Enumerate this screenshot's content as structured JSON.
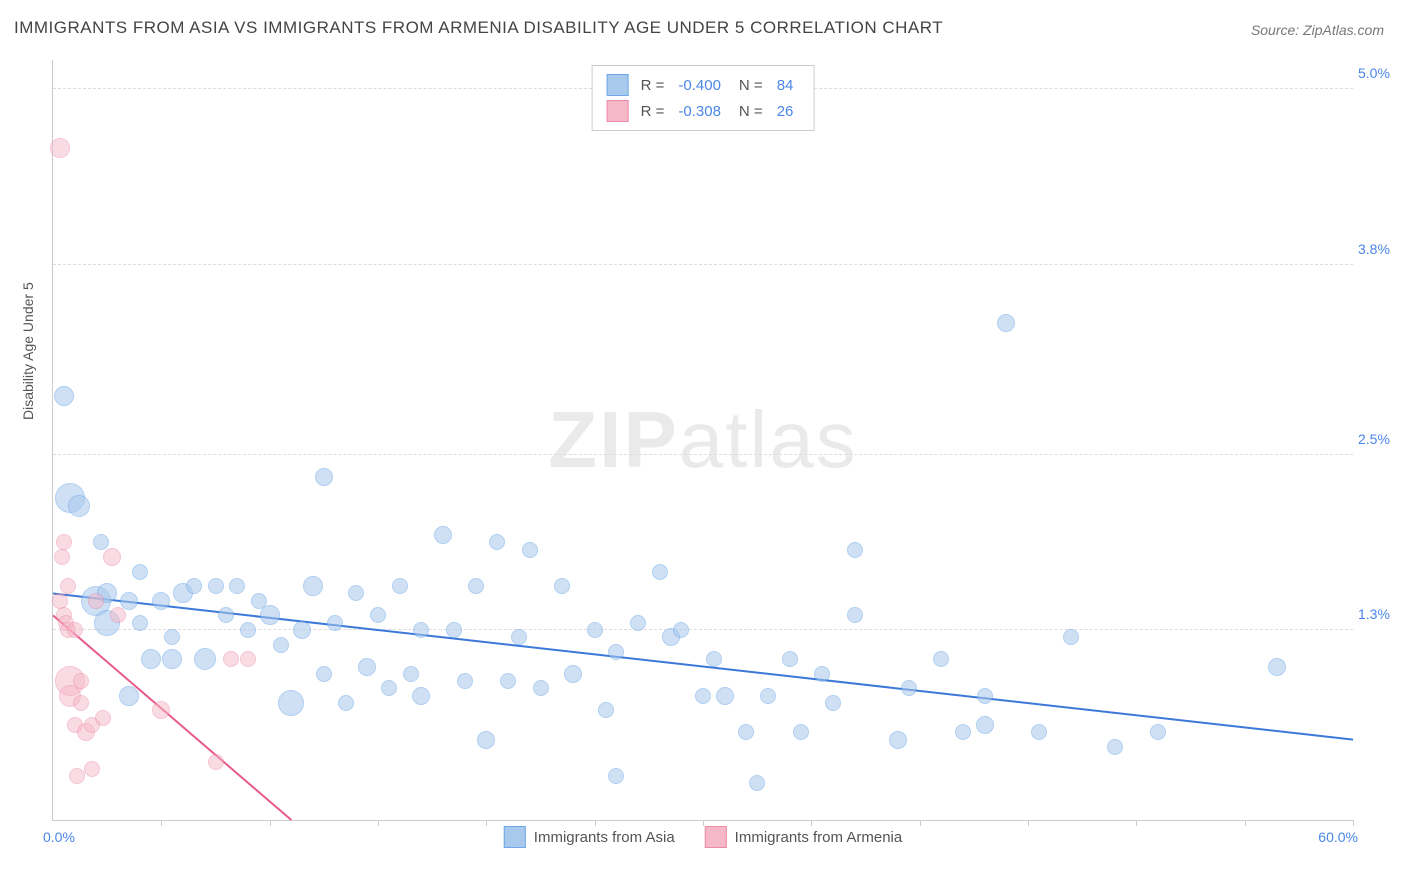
{
  "title": "IMMIGRANTS FROM ASIA VS IMMIGRANTS FROM ARMENIA DISABILITY AGE UNDER 5 CORRELATION CHART",
  "source": "Source: ZipAtlas.com",
  "watermark": "ZIPatlas",
  "ylabel": "Disability Age Under 5",
  "chart": {
    "type": "scatter",
    "xlim": [
      0,
      60
    ],
    "ylim": [
      0,
      5.2
    ],
    "yticks": [
      {
        "v": 1.3,
        "label": "1.3%"
      },
      {
        "v": 2.5,
        "label": "2.5%"
      },
      {
        "v": 3.8,
        "label": "3.8%"
      },
      {
        "v": 5.0,
        "label": "5.0%"
      }
    ],
    "xmin_label": "0.0%",
    "xmax_label": "60.0%",
    "xtick_marks": [
      5,
      10,
      15,
      20,
      25,
      30,
      35,
      40,
      45,
      50,
      55,
      60
    ],
    "background_color": "#ffffff",
    "grid_color": "#dddddd",
    "series": [
      {
        "name": "Immigrants from Asia",
        "fill": "#a8c8ec",
        "stroke": "#6fa8e8",
        "fill_opacity": 0.55,
        "trend": {
          "x1": 0,
          "y1": 1.55,
          "x2": 60,
          "y2": 0.55,
          "color": "#3b78d8",
          "width": 2
        },
        "R": "-0.400",
        "N": "84",
        "points": [
          {
            "x": 0.5,
            "y": 2.9,
            "r": 9
          },
          {
            "x": 0.8,
            "y": 2.2,
            "r": 14
          },
          {
            "x": 1.2,
            "y": 2.15,
            "r": 10
          },
          {
            "x": 2.0,
            "y": 1.5,
            "r": 14
          },
          {
            "x": 2.2,
            "y": 1.9,
            "r": 7
          },
          {
            "x": 2.5,
            "y": 1.55,
            "r": 9
          },
          {
            "x": 2.5,
            "y": 1.35,
            "r": 12
          },
          {
            "x": 3.5,
            "y": 1.5,
            "r": 8
          },
          {
            "x": 3.5,
            "y": 0.85,
            "r": 9
          },
          {
            "x": 4.0,
            "y": 1.7,
            "r": 7
          },
          {
            "x": 4.0,
            "y": 1.35,
            "r": 7
          },
          {
            "x": 4.5,
            "y": 1.1,
            "r": 9
          },
          {
            "x": 5.0,
            "y": 1.5,
            "r": 8
          },
          {
            "x": 5.5,
            "y": 1.25,
            "r": 7
          },
          {
            "x": 5.5,
            "y": 1.1,
            "r": 9
          },
          {
            "x": 6.0,
            "y": 1.55,
            "r": 9
          },
          {
            "x": 6.5,
            "y": 1.6,
            "r": 7
          },
          {
            "x": 7.0,
            "y": 1.1,
            "r": 10
          },
          {
            "x": 7.5,
            "y": 1.6,
            "r": 7
          },
          {
            "x": 8.0,
            "y": 1.4,
            "r": 7
          },
          {
            "x": 8.5,
            "y": 1.6,
            "r": 7
          },
          {
            "x": 9.0,
            "y": 1.3,
            "r": 7
          },
          {
            "x": 9.5,
            "y": 1.5,
            "r": 7
          },
          {
            "x": 10.0,
            "y": 1.4,
            "r": 9
          },
          {
            "x": 10.5,
            "y": 1.2,
            "r": 7
          },
          {
            "x": 11.0,
            "y": 0.8,
            "r": 12
          },
          {
            "x": 11.5,
            "y": 1.3,
            "r": 8
          },
          {
            "x": 12.0,
            "y": 1.6,
            "r": 9
          },
          {
            "x": 12.5,
            "y": 2.35,
            "r": 8
          },
          {
            "x": 12.5,
            "y": 1.0,
            "r": 7
          },
          {
            "x": 13.0,
            "y": 1.35,
            "r": 7
          },
          {
            "x": 13.5,
            "y": 0.8,
            "r": 7
          },
          {
            "x": 14.0,
            "y": 1.55,
            "r": 7
          },
          {
            "x": 14.5,
            "y": 1.05,
            "r": 8
          },
          {
            "x": 15.0,
            "y": 1.4,
            "r": 7
          },
          {
            "x": 15.5,
            "y": 0.9,
            "r": 7
          },
          {
            "x": 16.0,
            "y": 1.6,
            "r": 7
          },
          {
            "x": 16.5,
            "y": 1.0,
            "r": 7
          },
          {
            "x": 17.0,
            "y": 1.3,
            "r": 7
          },
          {
            "x": 17.0,
            "y": 0.85,
            "r": 8
          },
          {
            "x": 18.0,
            "y": 1.95,
            "r": 8
          },
          {
            "x": 18.5,
            "y": 1.3,
            "r": 7
          },
          {
            "x": 19.0,
            "y": 0.95,
            "r": 7
          },
          {
            "x": 19.5,
            "y": 1.6,
            "r": 7
          },
          {
            "x": 20.0,
            "y": 0.55,
            "r": 8
          },
          {
            "x": 20.5,
            "y": 1.9,
            "r": 7
          },
          {
            "x": 21.0,
            "y": 0.95,
            "r": 7
          },
          {
            "x": 21.5,
            "y": 1.25,
            "r": 7
          },
          {
            "x": 22.0,
            "y": 1.85,
            "r": 7
          },
          {
            "x": 22.5,
            "y": 0.9,
            "r": 7
          },
          {
            "x": 23.5,
            "y": 1.6,
            "r": 7
          },
          {
            "x": 24.0,
            "y": 1.0,
            "r": 8
          },
          {
            "x": 25.0,
            "y": 1.3,
            "r": 7
          },
          {
            "x": 25.5,
            "y": 0.75,
            "r": 7
          },
          {
            "x": 26.0,
            "y": 1.15,
            "r": 7
          },
          {
            "x": 26.0,
            "y": 0.3,
            "r": 7
          },
          {
            "x": 27.0,
            "y": 1.35,
            "r": 7
          },
          {
            "x": 28.0,
            "y": 1.7,
            "r": 7
          },
          {
            "x": 28.5,
            "y": 1.25,
            "r": 8
          },
          {
            "x": 29.0,
            "y": 1.3,
            "r": 7
          },
          {
            "x": 30.0,
            "y": 0.85,
            "r": 7
          },
          {
            "x": 30.5,
            "y": 1.1,
            "r": 7
          },
          {
            "x": 31.0,
            "y": 0.85,
            "r": 8
          },
          {
            "x": 32.0,
            "y": 0.6,
            "r": 7
          },
          {
            "x": 32.5,
            "y": 0.25,
            "r": 7
          },
          {
            "x": 33.0,
            "y": 0.85,
            "r": 7
          },
          {
            "x": 34.0,
            "y": 1.1,
            "r": 7
          },
          {
            "x": 34.5,
            "y": 0.6,
            "r": 7
          },
          {
            "x": 35.5,
            "y": 1.0,
            "r": 7
          },
          {
            "x": 36.0,
            "y": 0.8,
            "r": 7
          },
          {
            "x": 37.0,
            "y": 1.85,
            "r": 7
          },
          {
            "x": 37.0,
            "y": 1.4,
            "r": 7
          },
          {
            "x": 39.0,
            "y": 0.55,
            "r": 8
          },
          {
            "x": 39.5,
            "y": 0.9,
            "r": 7
          },
          {
            "x": 41.0,
            "y": 1.1,
            "r": 7
          },
          {
            "x": 42.0,
            "y": 0.6,
            "r": 7
          },
          {
            "x": 43.0,
            "y": 0.85,
            "r": 7
          },
          {
            "x": 43.0,
            "y": 0.65,
            "r": 8
          },
          {
            "x": 44.0,
            "y": 3.4,
            "r": 8
          },
          {
            "x": 45.5,
            "y": 0.6,
            "r": 7
          },
          {
            "x": 47.0,
            "y": 1.25,
            "r": 7
          },
          {
            "x": 49.0,
            "y": 0.5,
            "r": 7
          },
          {
            "x": 51.0,
            "y": 0.6,
            "r": 7
          },
          {
            "x": 56.5,
            "y": 1.05,
            "r": 8
          }
        ]
      },
      {
        "name": "Immigrants from Armenia",
        "fill": "#f5b8c8",
        "stroke": "#ec8aa8",
        "fill_opacity": 0.5,
        "trend": {
          "x1": 0,
          "y1": 1.4,
          "x2": 11,
          "y2": 0.0,
          "color": "#e75a8a",
          "width": 2
        },
        "R": "-0.308",
        "N": "26",
        "points": [
          {
            "x": 0.3,
            "y": 4.6,
            "r": 9
          },
          {
            "x": 0.3,
            "y": 1.5,
            "r": 7
          },
          {
            "x": 0.4,
            "y": 1.8,
            "r": 7
          },
          {
            "x": 0.5,
            "y": 1.9,
            "r": 7
          },
          {
            "x": 0.5,
            "y": 1.4,
            "r": 7
          },
          {
            "x": 0.6,
            "y": 1.35,
            "r": 7
          },
          {
            "x": 0.7,
            "y": 1.6,
            "r": 7
          },
          {
            "x": 0.7,
            "y": 1.3,
            "r": 7
          },
          {
            "x": 0.8,
            "y": 0.95,
            "r": 14
          },
          {
            "x": 0.8,
            "y": 0.85,
            "r": 10
          },
          {
            "x": 1.0,
            "y": 1.3,
            "r": 7
          },
          {
            "x": 1.0,
            "y": 0.65,
            "r": 7
          },
          {
            "x": 1.1,
            "y": 0.3,
            "r": 7
          },
          {
            "x": 1.3,
            "y": 0.95,
            "r": 7
          },
          {
            "x": 1.3,
            "y": 0.8,
            "r": 7
          },
          {
            "x": 1.5,
            "y": 0.6,
            "r": 8
          },
          {
            "x": 1.8,
            "y": 0.65,
            "r": 7
          },
          {
            "x": 1.8,
            "y": 0.35,
            "r": 7
          },
          {
            "x": 2.0,
            "y": 1.5,
            "r": 7
          },
          {
            "x": 2.3,
            "y": 0.7,
            "r": 7
          },
          {
            "x": 2.7,
            "y": 1.8,
            "r": 8
          },
          {
            "x": 3.0,
            "y": 1.4,
            "r": 7
          },
          {
            "x": 5.0,
            "y": 0.75,
            "r": 8
          },
          {
            "x": 7.5,
            "y": 0.4,
            "r": 7
          },
          {
            "x": 8.2,
            "y": 1.1,
            "r": 7
          },
          {
            "x": 9.0,
            "y": 1.1,
            "r": 7
          }
        ]
      }
    ]
  },
  "legend_top": [
    {
      "swatch_fill": "#a8c8ec",
      "swatch_stroke": "#6fa8e8",
      "R": "-0.400",
      "N": "84"
    },
    {
      "swatch_fill": "#f5b8c8",
      "swatch_stroke": "#ec8aa8",
      "R": "-0.308",
      "N": "26"
    }
  ],
  "legend_bottom": [
    {
      "swatch_fill": "#a8c8ec",
      "swatch_stroke": "#6fa8e8",
      "label": "Immigrants from Asia"
    },
    {
      "swatch_fill": "#f5b8c8",
      "swatch_stroke": "#ec8aa8",
      "label": "Immigrants from Armenia"
    }
  ]
}
